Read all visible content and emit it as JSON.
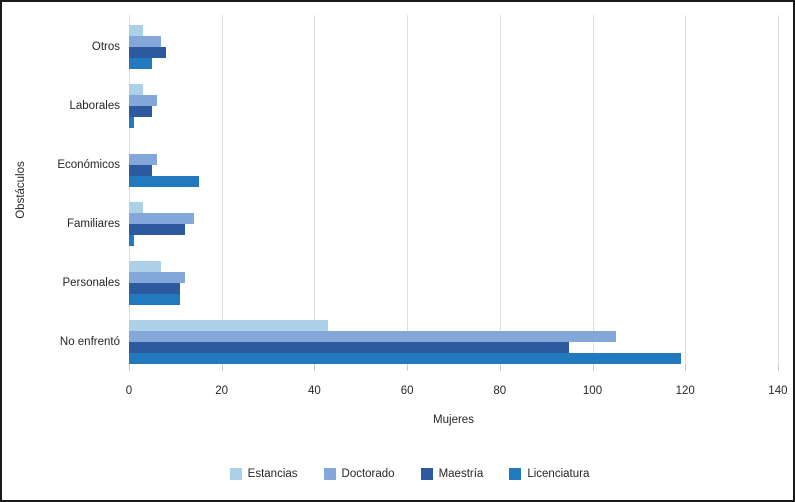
{
  "chart_data": {
    "type": "bar",
    "orientation": "horizontal",
    "title": "",
    "xlabel": "Mujeres",
    "ylabel": "Obstáculos",
    "xlim": [
      0,
      140
    ],
    "xticks": [
      0,
      20,
      40,
      60,
      80,
      100,
      120,
      140
    ],
    "grid": true,
    "legend_position": "bottom",
    "categories": [
      "Otros",
      "Laborales",
      "Económicos",
      "Familiares",
      "Personales",
      "No enfrentó"
    ],
    "series": [
      {
        "name": "Estancias",
        "color": "#abd0e8",
        "values": [
          3,
          3,
          0,
          3,
          7,
          43
        ]
      },
      {
        "name": "Doctorado",
        "color": "#84a7d9",
        "values": [
          7,
          6,
          6,
          14,
          12,
          105
        ]
      },
      {
        "name": "Maestría",
        "color": "#2d5a9e",
        "values": [
          8,
          5,
          5,
          12,
          11,
          95
        ]
      },
      {
        "name": "Licenciatura",
        "color": "#2379bd",
        "values": [
          5,
          1,
          15,
          1,
          11,
          119
        ]
      }
    ]
  },
  "colors": {
    "gridline": "#dedede",
    "tick": "#c9c9c9",
    "text": "#262626",
    "frame_border": "#1a1a1a"
  }
}
